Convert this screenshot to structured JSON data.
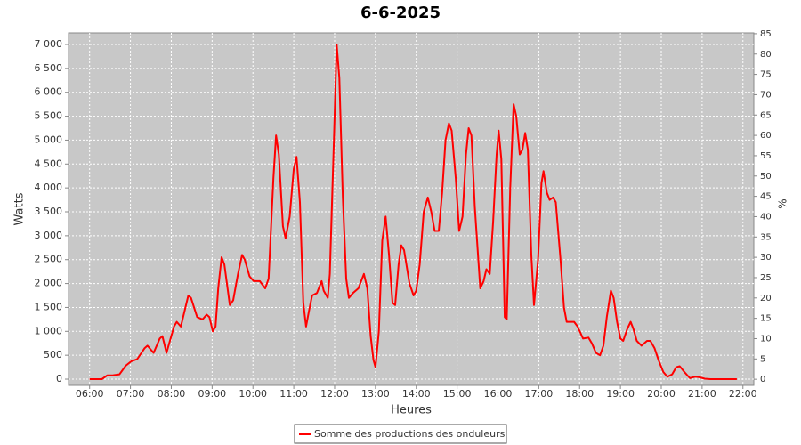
{
  "chart_data": {
    "type": "line",
    "title": "6-6-2025",
    "x_label": "Heures",
    "y_label": "Watts",
    "y2_label": "%",
    "x": [
      "06:00",
      "06:18",
      "06:26",
      "06:34",
      "06:44",
      "06:53",
      "07:01",
      "07:10",
      "07:21",
      "07:25",
      "07:34",
      "07:43",
      "07:47",
      "07:53",
      "08:04",
      "08:08",
      "08:14",
      "08:25",
      "08:29",
      "08:38",
      "08:46",
      "08:52",
      "08:56",
      "09:01",
      "09:05",
      "09:09",
      "09:14",
      "09:18",
      "09:26",
      "09:31",
      "09:38",
      "09:44",
      "09:48",
      "09:55",
      "10:01",
      "10:10",
      "10:18",
      "10:23",
      "10:30",
      "10:34",
      "10:38",
      "10:44",
      "10:48",
      "10:54",
      "11:00",
      "11:04",
      "11:09",
      "11:14",
      "11:18",
      "11:22",
      "11:27",
      "11:34",
      "11:41",
      "11:44",
      "11:50",
      "11:53",
      "11:59",
      "12:03",
      "12:07",
      "12:12",
      "12:17",
      "12:21",
      "12:27",
      "12:35",
      "12:43",
      "12:48",
      "12:53",
      "12:57",
      "13:00",
      "13:05",
      "13:10",
      "13:15",
      "13:20",
      "13:25",
      "13:29",
      "13:34",
      "13:38",
      "13:42",
      "13:50",
      "13:56",
      "14:00",
      "14:05",
      "14:11",
      "14:17",
      "14:22",
      "14:27",
      "14:33",
      "14:38",
      "14:43",
      "14:48",
      "14:52",
      "14:58",
      "15:03",
      "15:08",
      "15:13",
      "15:17",
      "15:21",
      "15:26",
      "15:34",
      "15:39",
      "15:43",
      "15:48",
      "15:53",
      "15:58",
      "16:01",
      "16:05",
      "16:10",
      "16:13",
      "16:18",
      "16:23",
      "16:27",
      "16:32",
      "16:36",
      "16:40",
      "16:44",
      "16:49",
      "16:53",
      "16:59",
      "17:04",
      "17:07",
      "17:12",
      "17:16",
      "17:21",
      "17:25",
      "17:32",
      "17:37",
      "17:41",
      "17:46",
      "17:52",
      "17:57",
      "18:05",
      "18:13",
      "18:18",
      "18:24",
      "18:30",
      "18:35",
      "18:40",
      "18:46",
      "18:50",
      "18:55",
      "19:00",
      "19:04",
      "19:10",
      "19:15",
      "19:19",
      "19:24",
      "19:31",
      "19:39",
      "19:44",
      "19:50",
      "19:56",
      "20:03",
      "20:09",
      "20:16",
      "20:22",
      "20:27",
      "20:34",
      "20:42",
      "20:50",
      "20:56",
      "21:04",
      "21:12",
      "21:51"
    ],
    "series": [
      {
        "name": "Somme des productions des onduleurs",
        "color": "#ff0000",
        "values": [
          0,
          0,
          80,
          80,
          100,
          280,
          370,
          420,
          650,
          700,
          550,
          850,
          900,
          550,
          1100,
          1200,
          1100,
          1750,
          1700,
          1300,
          1250,
          1350,
          1300,
          1000,
          1100,
          1900,
          2550,
          2400,
          1550,
          1650,
          2200,
          2600,
          2500,
          2150,
          2050,
          2050,
          1900,
          2100,
          4200,
          5100,
          4700,
          3200,
          2950,
          3400,
          4400,
          4650,
          3700,
          1600,
          1100,
          1400,
          1750,
          1800,
          2050,
          1850,
          1700,
          2200,
          5000,
          7000,
          6300,
          3800,
          2100,
          1700,
          1800,
          1900,
          2200,
          1900,
          900,
          400,
          250,
          1000,
          2900,
          3400,
          2600,
          1600,
          1550,
          2400,
          2800,
          2700,
          2000,
          1750,
          1850,
          2400,
          3500,
          3800,
          3500,
          3100,
          3100,
          3900,
          5000,
          5350,
          5200,
          4200,
          3100,
          3400,
          4700,
          5250,
          5100,
          3600,
          1900,
          2050,
          2300,
          2200,
          3300,
          4700,
          5200,
          4600,
          1300,
          1250,
          4000,
          5750,
          5500,
          4700,
          4800,
          5150,
          4800,
          2600,
          1550,
          2500,
          4100,
          4350,
          3900,
          3750,
          3800,
          3700,
          2500,
          1500,
          1200,
          1200,
          1200,
          1100,
          850,
          870,
          750,
          550,
          500,
          700,
          1300,
          1850,
          1700,
          1200,
          850,
          800,
          1050,
          1200,
          1050,
          800,
          700,
          800,
          800,
          650,
          400,
          150,
          50,
          100,
          250,
          270,
          150,
          20,
          50,
          40,
          10,
          0,
          0
        ]
      }
    ],
    "xlim": [
      "05:29",
      "22:16"
    ],
    "xticks": [
      "06:00",
      "07:00",
      "08:00",
      "09:00",
      "10:00",
      "11:00",
      "12:00",
      "13:00",
      "14:00",
      "15:00",
      "16:00",
      "17:00",
      "18:00",
      "19:00",
      "20:00",
      "21:00",
      "22:00"
    ],
    "ylim": [
      -130,
      7242
    ],
    "yticks": [
      0,
      500,
      {
        "value": 1000,
        "label": "1 000"
      },
      {
        "value": 1500,
        "label": "1 500"
      },
      {
        "value": 2000,
        "label": "2 000"
      },
      {
        "value": 2500,
        "label": "2 500"
      },
      {
        "value": 3000,
        "label": "3 000"
      },
      {
        "value": 3500,
        "label": "3 500"
      },
      {
        "value": 4000,
        "label": "4 000"
      },
      {
        "value": 4500,
        "label": "4 500"
      },
      {
        "value": 5000,
        "label": "5 000"
      },
      {
        "value": 5500,
        "label": "5 500"
      },
      {
        "value": 6000,
        "label": "6 000"
      },
      {
        "value": 6500,
        "label": "6 500"
      },
      {
        "value": 7000,
        "label": "7 000"
      }
    ],
    "y2lim": [
      -1.5,
      85.2
    ],
    "y2ticks": [
      0,
      5,
      10,
      15,
      20,
      25,
      30,
      35,
      40,
      45,
      50,
      55,
      60,
      65,
      70,
      75,
      80,
      85
    ],
    "grid": true,
    "legend": "bottom"
  }
}
